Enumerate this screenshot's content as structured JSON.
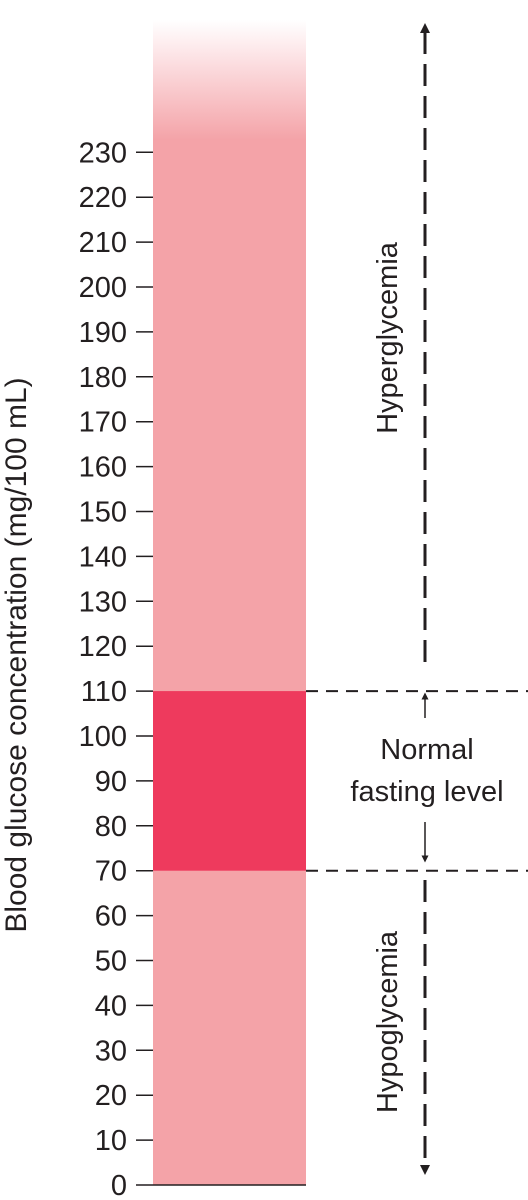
{
  "axis": {
    "label": "Blood glucose concentration (mg/100 mL)",
    "ticks": [
      0,
      10,
      20,
      30,
      40,
      50,
      60,
      70,
      80,
      90,
      100,
      110,
      120,
      130,
      140,
      150,
      160,
      170,
      180,
      190,
      200,
      210,
      220,
      230
    ]
  },
  "bands": {
    "normal_range": [
      70,
      110
    ],
    "normal_label_line1": "Normal",
    "normal_label_line2": "fasting level",
    "hyper_label": "Hyperglycemia",
    "hypo_label": "Hypoglycemia"
  },
  "colors": {
    "column": "#f4a3a8",
    "normal": "#ee3a5d",
    "ink": "#231f20"
  }
}
